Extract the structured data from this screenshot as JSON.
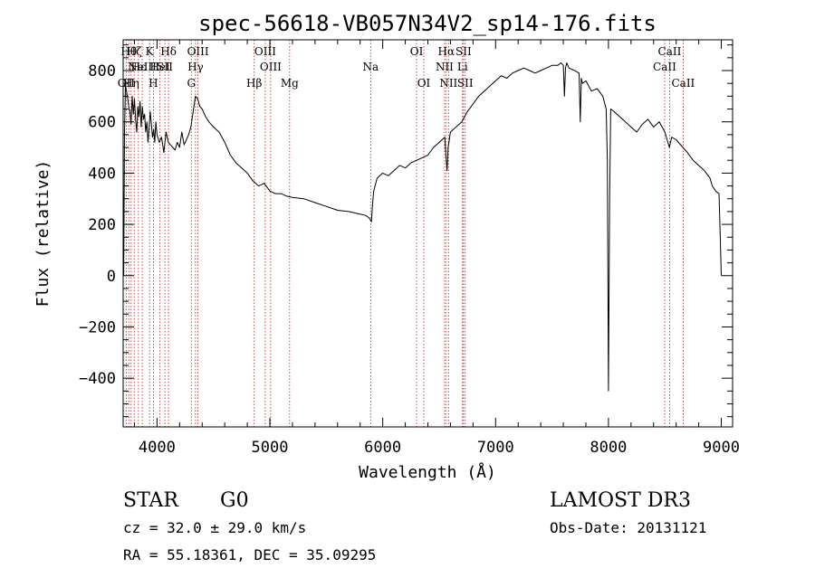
{
  "chart_data": {
    "type": "line",
    "title": "spec-56618-VB057N34V2_sp14-176.fits",
    "xlabel": "Wavelength (Å)",
    "ylabel": "Flux (relative)",
    "xlim": [
      3700,
      9100
    ],
    "ylim": [
      -590,
      920
    ],
    "x_ticks": [
      4000,
      5000,
      6000,
      7000,
      8000,
      9000
    ],
    "x_tick_labels": [
      "4000",
      "5000",
      "6000",
      "7000",
      "8000",
      "9000"
    ],
    "y_ticks": [
      -400,
      -200,
      0,
      200,
      400,
      600,
      800
    ],
    "y_tick_labels": [
      "−400",
      "−200",
      "0",
      "200",
      "400",
      "600",
      "800"
    ],
    "series": [
      {
        "name": "flux",
        "x": [
          3700,
          3705,
          3712,
          3720,
          3730,
          3740,
          3750,
          3760,
          3770,
          3780,
          3790,
          3800,
          3810,
          3820,
          3830,
          3840,
          3850,
          3860,
          3870,
          3880,
          3890,
          3900,
          3910,
          3920,
          3930,
          3940,
          3950,
          3960,
          3970,
          3980,
          3990,
          4000,
          4020,
          4040,
          4060,
          4080,
          4100,
          4120,
          4140,
          4160,
          4180,
          4200,
          4220,
          4240,
          4260,
          4280,
          4300,
          4320,
          4340,
          4360,
          4380,
          4400,
          4430,
          4460,
          4500,
          4550,
          4600,
          4650,
          4700,
          4750,
          4800,
          4850,
          4900,
          4950,
          5000,
          5050,
          5100,
          5150,
          5200,
          5300,
          5400,
          5500,
          5600,
          5700,
          5800,
          5850,
          5880,
          5900,
          5910,
          5920,
          5950,
          6000,
          6050,
          6100,
          6150,
          6200,
          6250,
          6300,
          6350,
          6400,
          6450,
          6500,
          6550,
          6560,
          6570,
          6580,
          6600,
          6650,
          6700,
          6750,
          6800,
          6850,
          6900,
          6950,
          7000,
          7050,
          7100,
          7150,
          7200,
          7250,
          7300,
          7350,
          7400,
          7450,
          7500,
          7550,
          7580,
          7600,
          7610,
          7620,
          7630,
          7650,
          7700,
          7740,
          7750,
          7760,
          7770,
          7800,
          7850,
          7900,
          7950,
          7980,
          7990,
          8000,
          8010,
          8020,
          8050,
          8100,
          8150,
          8200,
          8250,
          8300,
          8350,
          8400,
          8450,
          8500,
          8540,
          8560,
          8600,
          8660,
          8700,
          8750,
          8800,
          8850,
          8900,
          8920,
          8950,
          8980,
          8990,
          9000
        ],
        "values": [
          350,
          0,
          560,
          740,
          720,
          690,
          660,
          640,
          590,
          700,
          630,
          690,
          610,
          560,
          660,
          620,
          680,
          580,
          660,
          610,
          630,
          560,
          600,
          520,
          580,
          640,
          590,
          540,
          570,
          520,
          600,
          550,
          520,
          540,
          480,
          560,
          520,
          510,
          500,
          490,
          520,
          500,
          560,
          510,
          530,
          550,
          580,
          640,
          700,
          690,
          660,
          650,
          620,
          600,
          580,
          560,
          520,
          470,
          440,
          420,
          400,
          370,
          350,
          360,
          330,
          320,
          320,
          310,
          305,
          300,
          285,
          270,
          255,
          250,
          240,
          235,
          225,
          210,
          280,
          330,
          380,
          400,
          390,
          410,
          430,
          420,
          440,
          450,
          460,
          470,
          500,
          520,
          540,
          470,
          410,
          500,
          560,
          580,
          600,
          640,
          670,
          700,
          720,
          740,
          760,
          780,
          770,
          790,
          800,
          810,
          800,
          790,
          800,
          810,
          820,
          820,
          830,
          820,
          700,
          810,
          830,
          810,
          800,
          790,
          600,
          770,
          750,
          760,
          720,
          730,
          700,
          650,
          450,
          -450,
          300,
          650,
          640,
          620,
          600,
          580,
          560,
          590,
          610,
          580,
          600,
          560,
          500,
          540,
          530,
          500,
          480,
          450,
          430,
          410,
          380,
          350,
          330,
          320,
          160,
          0
        ]
      }
    ],
    "line_markers": [
      {
        "x": 3727,
        "label": "OII",
        "row": 3
      },
      {
        "x": 3750,
        "label": "Hθ",
        "row": 1
      },
      {
        "x": 3771,
        "label": "Hη",
        "row": 3
      },
      {
        "x": 3798,
        "label": "Hζ",
        "row": 1
      },
      {
        "x": 3835,
        "label": "Hε",
        "row": 2
      },
      {
        "x": 3869,
        "label": "NeIII",
        "row": 2
      },
      {
        "x": 3934,
        "label": "K",
        "row": 1
      },
      {
        "x": 3968,
        "label": "H",
        "row": 3
      },
      {
        "x": 4026,
        "label": "HeI",
        "row": 2
      },
      {
        "x": 4070,
        "label": "SII",
        "row": 2
      },
      {
        "x": 4102,
        "label": "Hδ",
        "row": 1
      },
      {
        "x": 4304,
        "label": "G",
        "row": 3
      },
      {
        "x": 4341,
        "label": "Hγ",
        "row": 2
      },
      {
        "x": 4363,
        "label": "OIII",
        "row": 1
      },
      {
        "x": 4861,
        "label": "Hβ",
        "row": 3
      },
      {
        "x": 4959,
        "label": "OIII",
        "row": 1
      },
      {
        "x": 5007,
        "label": "OIII",
        "row": 2
      },
      {
        "x": 5175,
        "label": "Mg",
        "row": 3
      },
      {
        "x": 5893,
        "label": "Na",
        "row": 2
      },
      {
        "x": 6300,
        "label": "OI",
        "row": 1
      },
      {
        "x": 6364,
        "label": "OI",
        "row": 3
      },
      {
        "x": 6548,
        "label": "NII",
        "row": 2
      },
      {
        "x": 6563,
        "label": "Hα",
        "row": 1
      },
      {
        "x": 6583,
        "label": "NII",
        "row": 3
      },
      {
        "x": 6707,
        "label": "Li",
        "row": 2
      },
      {
        "x": 6716,
        "label": "SII",
        "row": 1
      },
      {
        "x": 6731,
        "label": "SII",
        "row": 3
      },
      {
        "x": 8498,
        "label": "CaII",
        "row": 2
      },
      {
        "x": 8542,
        "label": "CaII",
        "row": 1
      },
      {
        "x": 8662,
        "label": "CaII",
        "row": 3
      }
    ]
  },
  "info": {
    "class": "STAR",
    "subclass": "G0",
    "survey": "LAMOST DR3",
    "cz": "cz = 32.0 ± 29.0 km/s",
    "obs_date": "Obs-Date: 20131121",
    "coords": "RA =  55.18361, DEC =  35.09295"
  },
  "colors": {
    "axis": "#000000",
    "spectrum": "#000000",
    "line_marker": "#b22222"
  }
}
